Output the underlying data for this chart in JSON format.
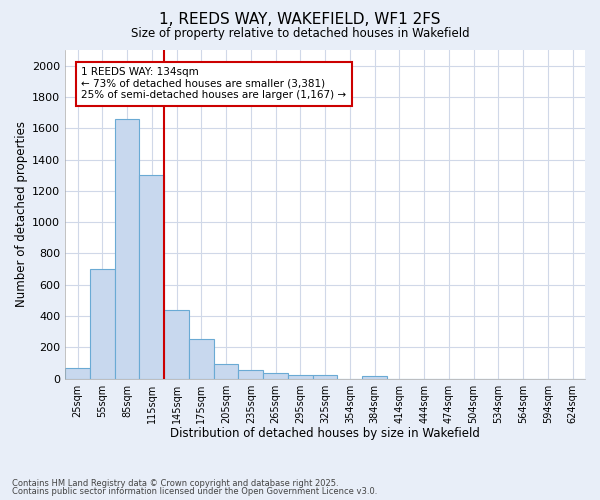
{
  "title": "1, REEDS WAY, WAKEFIELD, WF1 2FS",
  "subtitle": "Size of property relative to detached houses in Wakefield",
  "xlabel": "Distribution of detached houses by size in Wakefield",
  "ylabel": "Number of detached properties",
  "categories": [
    "25sqm",
    "55sqm",
    "85sqm",
    "115sqm",
    "145sqm",
    "175sqm",
    "205sqm",
    "235sqm",
    "265sqm",
    "295sqm",
    "325sqm",
    "354sqm",
    "384sqm",
    "414sqm",
    "444sqm",
    "474sqm",
    "504sqm",
    "534sqm",
    "564sqm",
    "594sqm",
    "624sqm"
  ],
  "values": [
    70,
    700,
    1660,
    1300,
    440,
    250,
    95,
    55,
    35,
    25,
    20,
    0,
    15,
    0,
    0,
    0,
    0,
    0,
    0,
    0,
    0
  ],
  "bar_color": "#c8d8ee",
  "bar_edgecolor": "#6aaad4",
  "vline_color": "#cc0000",
  "annotation_title": "1 REEDS WAY: 134sqm",
  "annotation_line2": "← 73% of detached houses are smaller (3,381)",
  "annotation_line3": "25% of semi-detached houses are larger (1,167) →",
  "annotation_box_color": "#cc0000",
  "ylim": [
    0,
    2100
  ],
  "plot_bg": "#ffffff",
  "fig_bg": "#e8eef8",
  "grid_color": "#d0d8e8",
  "footer1": "Contains HM Land Registry data © Crown copyright and database right 2025.",
  "footer2": "Contains public sector information licensed under the Open Government Licence v3.0."
}
